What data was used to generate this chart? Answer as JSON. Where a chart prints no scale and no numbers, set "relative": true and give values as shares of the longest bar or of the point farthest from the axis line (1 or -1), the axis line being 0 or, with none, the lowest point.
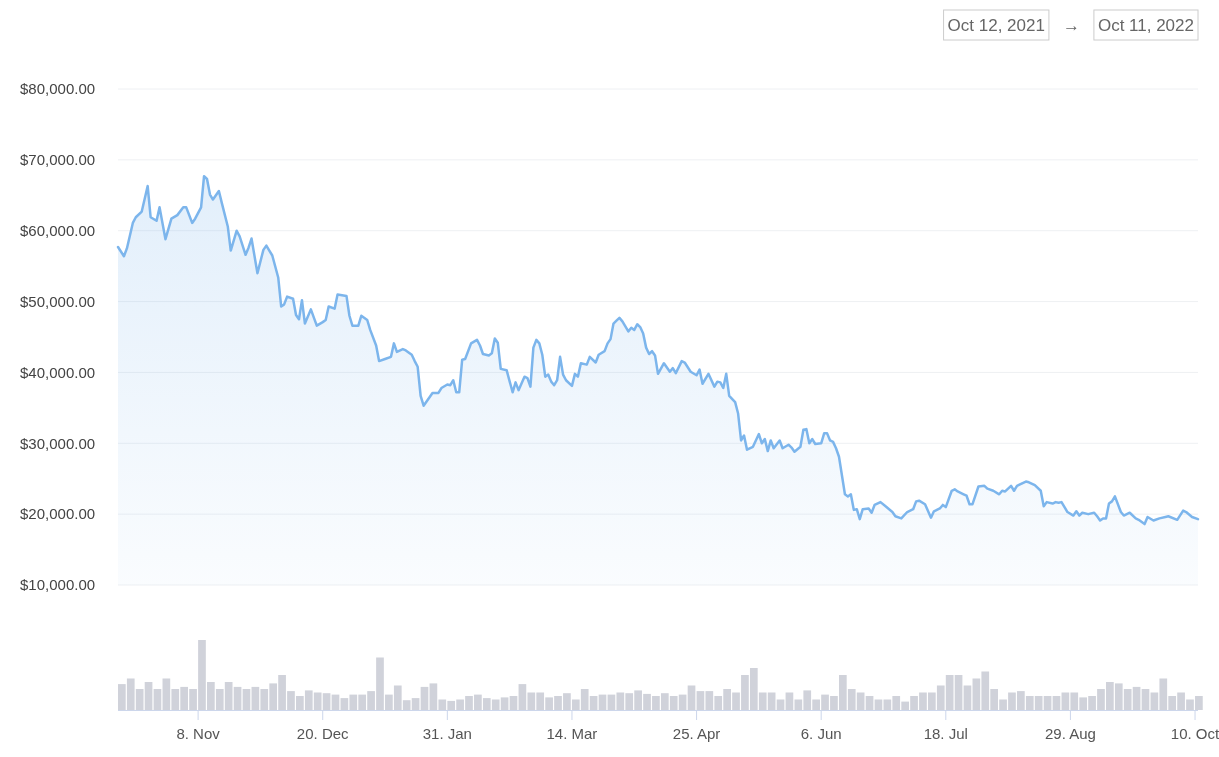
{
  "chart_data": [
    {
      "type": "area",
      "color": "#7cb5ec",
      "xlim": [
        "2021-10-12",
        "2022-10-11"
      ],
      "ylim": [
        10000,
        80000
      ],
      "yticks": [
        {
          "value": 10000,
          "label": "$10,000.00"
        },
        {
          "value": 20000,
          "label": "$20,000.00"
        },
        {
          "value": 30000,
          "label": "$30,000.00"
        },
        {
          "value": 40000,
          "label": "$40,000.00"
        },
        {
          "value": 50000,
          "label": "$50,000.00"
        },
        {
          "value": 60000,
          "label": "$60,000.00"
        },
        {
          "value": 70000,
          "label": "$70,000.00"
        },
        {
          "value": 80000,
          "label": "$80,000.00"
        }
      ],
      "grid": "y",
      "tick_labels": "y",
      "annotations": [
        "Oct 12, 2021",
        "→",
        "Oct 11, 2022"
      ],
      "x": [
        "2021-10-12",
        "2021-10-14",
        "2021-10-15",
        "2021-10-17",
        "2021-10-18",
        "2021-10-20",
        "2021-10-22",
        "2021-10-23",
        "2021-10-25",
        "2021-10-26",
        "2021-10-28",
        "2021-10-30",
        "2021-11-01",
        "2021-11-03",
        "2021-11-04",
        "2021-11-06",
        "2021-11-07",
        "2021-11-09",
        "2021-11-10",
        "2021-11-11",
        "2021-11-12",
        "2021-11-13",
        "2021-11-15",
        "2021-11-16",
        "2021-11-18",
        "2021-11-19",
        "2021-11-21",
        "2021-11-22",
        "2021-11-24",
        "2021-11-25",
        "2021-11-26",
        "2021-11-28",
        "2021-11-30",
        "2021-12-01",
        "2021-12-02",
        "2021-12-03",
        "2021-12-05",
        "2021-12-06",
        "2021-12-07",
        "2021-12-08",
        "2021-12-10",
        "2021-12-11",
        "2021-12-12",
        "2021-12-13",
        "2021-12-14",
        "2021-12-16",
        "2021-12-18",
        "2021-12-20",
        "2021-12-21",
        "2021-12-22",
        "2021-12-24",
        "2021-12-25",
        "2021-12-28",
        "2021-12-29",
        "2021-12-30",
        "2022-01-01",
        "2022-01-02",
        "2022-01-04",
        "2022-01-05",
        "2022-01-07",
        "2022-01-08",
        "2022-01-10",
        "2022-01-12",
        "2022-01-13",
        "2022-01-14",
        "2022-01-16",
        "2022-01-17",
        "2022-01-19",
        "2022-01-20",
        "2022-01-21",
        "2022-01-22",
        "2022-01-23",
        "2022-01-25",
        "2022-01-26",
        "2022-01-28",
        "2022-01-29",
        "2022-01-31",
        "2022-02-01",
        "2022-02-02",
        "2022-02-03",
        "2022-02-04",
        "2022-02-05",
        "2022-02-06",
        "2022-02-08",
        "2022-02-10",
        "2022-02-11",
        "2022-02-12",
        "2022-02-14",
        "2022-02-15",
        "2022-02-16",
        "2022-02-17",
        "2022-02-18",
        "2022-02-20",
        "2022-02-22",
        "2022-02-23",
        "2022-02-24",
        "2022-02-26",
        "2022-02-27",
        "2022-02-28",
        "2022-03-01",
        "2022-03-02",
        "2022-03-03",
        "2022-03-04",
        "2022-03-05",
        "2022-03-06",
        "2022-03-07",
        "2022-03-08",
        "2022-03-09",
        "2022-03-10",
        "2022-03-11",
        "2022-03-12",
        "2022-03-14",
        "2022-03-15",
        "2022-03-16",
        "2022-03-17",
        "2022-03-19",
        "2022-03-20",
        "2022-03-22",
        "2022-03-23",
        "2022-03-25",
        "2022-03-26",
        "2022-03-27",
        "2022-03-28",
        "2022-03-29",
        "2022-03-30",
        "2022-03-31",
        "2022-04-02",
        "2022-04-03",
        "2022-04-04",
        "2022-04-05",
        "2022-04-06",
        "2022-04-07",
        "2022-04-08",
        "2022-04-09",
        "2022-04-10",
        "2022-04-11",
        "2022-04-12",
        "2022-04-14",
        "2022-04-16",
        "2022-04-17",
        "2022-04-18",
        "2022-04-20",
        "2022-04-21",
        "2022-04-23",
        "2022-04-25",
        "2022-04-26",
        "2022-04-27",
        "2022-04-29",
        "2022-05-01",
        "2022-05-02",
        "2022-05-03",
        "2022-05-04",
        "2022-05-05",
        "2022-05-06",
        "2022-05-08",
        "2022-05-09",
        "2022-05-10",
        "2022-05-11",
        "2022-05-12",
        "2022-05-14",
        "2022-05-16",
        "2022-05-17",
        "2022-05-18",
        "2022-05-19",
        "2022-05-20",
        "2022-05-21",
        "2022-05-23",
        "2022-05-24",
        "2022-05-26",
        "2022-05-27",
        "2022-05-28",
        "2022-05-30",
        "2022-05-31",
        "2022-06-01",
        "2022-06-02",
        "2022-06-03",
        "2022-06-04",
        "2022-06-06",
        "2022-06-07",
        "2022-06-08",
        "2022-06-09",
        "2022-06-10",
        "2022-06-11",
        "2022-06-12",
        "2022-06-14",
        "2022-06-15",
        "2022-06-16",
        "2022-06-17",
        "2022-06-18",
        "2022-06-19",
        "2022-06-20",
        "2022-06-22",
        "2022-06-23",
        "2022-06-24",
        "2022-06-26",
        "2022-06-28",
        "2022-06-30",
        "2022-07-01",
        "2022-07-03",
        "2022-07-05",
        "2022-07-07",
        "2022-07-08",
        "2022-07-09",
        "2022-07-11",
        "2022-07-13",
        "2022-07-14",
        "2022-07-16",
        "2022-07-17",
        "2022-07-18",
        "2022-07-20",
        "2022-07-21",
        "2022-07-22",
        "2022-07-24",
        "2022-07-25",
        "2022-07-26",
        "2022-07-27",
        "2022-07-29",
        "2022-07-31",
        "2022-08-01",
        "2022-08-03",
        "2022-08-05",
        "2022-08-06",
        "2022-08-07",
        "2022-08-09",
        "2022-08-10",
        "2022-08-11",
        "2022-08-12",
        "2022-08-14",
        "2022-08-15",
        "2022-08-17",
        "2022-08-19",
        "2022-08-20",
        "2022-08-21",
        "2022-08-23",
        "2022-08-24",
        "2022-08-25",
        "2022-08-26",
        "2022-08-28",
        "2022-08-30",
        "2022-08-31",
        "2022-09-01",
        "2022-09-02",
        "2022-09-04",
        "2022-09-06",
        "2022-09-07",
        "2022-09-08",
        "2022-09-09",
        "2022-09-10",
        "2022-09-11",
        "2022-09-12",
        "2022-09-13",
        "2022-09-15",
        "2022-09-16",
        "2022-09-18",
        "2022-09-20",
        "2022-09-21",
        "2022-09-23",
        "2022-09-24",
        "2022-09-26",
        "2022-09-28",
        "2022-09-30",
        "2022-10-01",
        "2022-10-04",
        "2022-10-06",
        "2022-10-07",
        "2022-10-09",
        "2022-10-11"
      ],
      "values": [
        57700,
        56400,
        57500,
        61100,
        61900,
        62700,
        66300,
        61900,
        61400,
        63300,
        58800,
        61700,
        62200,
        63300,
        63300,
        61100,
        61700,
        63300,
        67700,
        67300,
        65100,
        64400,
        65600,
        63900,
        60600,
        57200,
        60000,
        59200,
        56600,
        57600,
        58900,
        54000,
        57300,
        57900,
        57200,
        56500,
        53400,
        49300,
        49600,
        50700,
        50400,
        48100,
        47500,
        50200,
        46900,
        48900,
        46600,
        47100,
        47400,
        49300,
        49000,
        51000,
        50800,
        48000,
        46600,
        46600,
        48000,
        47400,
        46000,
        43800,
        41600,
        41900,
        42200,
        44100,
        42900,
        43300,
        43100,
        42500,
        41600,
        40800,
        36700,
        35300,
        36500,
        37100,
        37100,
        37800,
        38300,
        38200,
        38900,
        37200,
        37200,
        41800,
        41900,
        44100,
        44600,
        43800,
        42600,
        42400,
        42700,
        44800,
        44200,
        40500,
        40300,
        37200,
        38600,
        37500,
        39400,
        39200,
        38000,
        43500,
        44600,
        44100,
        42500,
        39400,
        39700,
        38700,
        38200,
        38900,
        42200,
        39700,
        38900,
        38100,
        39800,
        39400,
        41300,
        41100,
        42200,
        41400,
        42500,
        43000,
        44100,
        44700,
        46900,
        47300,
        47700,
        47200,
        45800,
        46300,
        46000,
        46800,
        46400,
        45500,
        43500,
        42600,
        43000,
        42400,
        39800,
        41300,
        40100,
        40600,
        39900,
        41600,
        41400,
        40100,
        39600,
        40400,
        38400,
        39800,
        38000,
        38700,
        38600,
        37800,
        39800,
        36700,
        35800,
        34200,
        30400,
        31100,
        29100,
        29500,
        31300,
        30000,
        30600,
        28900,
        30400,
        29300,
        30400,
        29300,
        29800,
        29400,
        28800,
        29500,
        31900,
        32000,
        30000,
        30600,
        29900,
        30000,
        31400,
        31400,
        30400,
        30200,
        29300,
        28100,
        22800,
        22500,
        22800,
        20600,
        20700,
        19300,
        20700,
        20800,
        20200,
        21300,
        21700,
        21000,
        20300,
        19700,
        19400,
        20300,
        20700,
        21800,
        21900,
        21400,
        19500,
        20400,
        20800,
        21300,
        21000,
        23300,
        23500,
        23200,
        22800,
        22600,
        21400,
        21400,
        23900,
        24000,
        23600,
        23300,
        22800,
        23300,
        23200,
        24000,
        23300,
        24000,
        24200,
        24600,
        24500,
        24100,
        23300,
        21100,
        21700,
        21500,
        21700,
        21600,
        21700,
        20300,
        19800,
        20400,
        19800,
        20200,
        20000,
        20200,
        19700,
        19100,
        19400,
        19400,
        21500,
        21800,
        22500,
        20300,
        19800,
        20200,
        19400,
        19200,
        18600,
        19600,
        19100,
        19400,
        19600,
        19700,
        19200,
        20500,
        20300,
        19600,
        19300
      ]
    },
    {
      "type": "bar",
      "relative": true,
      "color": "#d0d2da",
      "xlim": [
        "2021-10-12",
        "2022-10-11"
      ],
      "tick_labels": "x",
      "xticks": [
        {
          "value": "2021-11-08",
          "label": "8. Nov"
        },
        {
          "value": "2021-12-20",
          "label": "20. Dec"
        },
        {
          "value": "2022-01-31",
          "label": "31. Jan"
        },
        {
          "value": "2022-03-14",
          "label": "14. Mar"
        },
        {
          "value": "2022-04-25",
          "label": "25. Apr"
        },
        {
          "value": "2022-06-06",
          "label": "6. Jun"
        },
        {
          "value": "2022-07-18",
          "label": "18. Jul"
        },
        {
          "value": "2022-08-29",
          "label": "29. Aug"
        },
        {
          "value": "2022-10-10",
          "label": "10. Oct"
        }
      ],
      "x": [
        "2021-10-12",
        "2021-10-15",
        "2021-10-18",
        "2021-10-21",
        "2021-10-24",
        "2021-10-27",
        "2021-10-30",
        "2021-11-02",
        "2021-11-05",
        "2021-11-08",
        "2021-11-11",
        "2021-11-14",
        "2021-11-17",
        "2021-11-20",
        "2021-11-23",
        "2021-11-26",
        "2021-11-29",
        "2021-12-02",
        "2021-12-05",
        "2021-12-08",
        "2021-12-11",
        "2021-12-14",
        "2021-12-17",
        "2021-12-20",
        "2021-12-23",
        "2021-12-26",
        "2021-12-29",
        "2022-01-01",
        "2022-01-04",
        "2022-01-07",
        "2022-01-10",
        "2022-01-13",
        "2022-01-16",
        "2022-01-19",
        "2022-01-22",
        "2022-01-25",
        "2022-01-28",
        "2022-01-31",
        "2022-02-03",
        "2022-02-06",
        "2022-02-09",
        "2022-02-12",
        "2022-02-15",
        "2022-02-18",
        "2022-02-21",
        "2022-02-24",
        "2022-02-27",
        "2022-03-02",
        "2022-03-05",
        "2022-03-08",
        "2022-03-11",
        "2022-03-14",
        "2022-03-17",
        "2022-03-20",
        "2022-03-23",
        "2022-03-26",
        "2022-03-29",
        "2022-04-01",
        "2022-04-04",
        "2022-04-07",
        "2022-04-10",
        "2022-04-13",
        "2022-04-16",
        "2022-04-19",
        "2022-04-22",
        "2022-04-25",
        "2022-04-28",
        "2022-05-01",
        "2022-05-04",
        "2022-05-07",
        "2022-05-10",
        "2022-05-13",
        "2022-05-16",
        "2022-05-19",
        "2022-05-22",
        "2022-05-25",
        "2022-05-28",
        "2022-05-31",
        "2022-06-03",
        "2022-06-06",
        "2022-06-09",
        "2022-06-12",
        "2022-06-15",
        "2022-06-18",
        "2022-06-21",
        "2022-06-24",
        "2022-06-27",
        "2022-06-30",
        "2022-07-03",
        "2022-07-06",
        "2022-07-09",
        "2022-07-12",
        "2022-07-15",
        "2022-07-18",
        "2022-07-21",
        "2022-07-24",
        "2022-07-27",
        "2022-07-30",
        "2022-08-02",
        "2022-08-05",
        "2022-08-08",
        "2022-08-11",
        "2022-08-14",
        "2022-08-17",
        "2022-08-20",
        "2022-08-23",
        "2022-08-26",
        "2022-08-29",
        "2022-09-01",
        "2022-09-04",
        "2022-09-07",
        "2022-09-10",
        "2022-09-13",
        "2022-09-16",
        "2022-09-19",
        "2022-09-22",
        "2022-09-25",
        "2022-09-28",
        "2022-10-01",
        "2022-10-04",
        "2022-10-07",
        "2022-10-10"
      ],
      "values": [
        0.37,
        0.45,
        0.3,
        0.4,
        0.3,
        0.45,
        0.3,
        0.33,
        0.3,
        1,
        0.4,
        0.3,
        0.4,
        0.33,
        0.3,
        0.33,
        0.3,
        0.38,
        0.5,
        0.27,
        0.2,
        0.28,
        0.25,
        0.24,
        0.22,
        0.17,
        0.22,
        0.22,
        0.27,
        0.75,
        0.22,
        0.35,
        0.14,
        0.17,
        0.33,
        0.38,
        0.15,
        0.13,
        0.15,
        0.2,
        0.22,
        0.17,
        0.15,
        0.18,
        0.2,
        0.37,
        0.25,
        0.25,
        0.18,
        0.2,
        0.24,
        0.15,
        0.3,
        0.2,
        0.22,
        0.22,
        0.25,
        0.24,
        0.28,
        0.23,
        0.2,
        0.24,
        0.2,
        0.22,
        0.35,
        0.27,
        0.27,
        0.2,
        0.3,
        0.25,
        0.5,
        0.6,
        0.25,
        0.25,
        0.15,
        0.25,
        0.15,
        0.28,
        0.15,
        0.22,
        0.2,
        0.5,
        0.3,
        0.25,
        0.2,
        0.15,
        0.15,
        0.2,
        0.12,
        0.2,
        0.25,
        0.25,
        0.35,
        0.5,
        0.5,
        0.35,
        0.45,
        0.55,
        0.3,
        0.15,
        0.25,
        0.27,
        0.2,
        0.2,
        0.2,
        0.2,
        0.25,
        0.25,
        0.18,
        0.2,
        0.3,
        0.4,
        0.38,
        0.3,
        0.33,
        0.3,
        0.25,
        0.45,
        0.2,
        0.25,
        0.15,
        0.2
      ]
    }
  ]
}
